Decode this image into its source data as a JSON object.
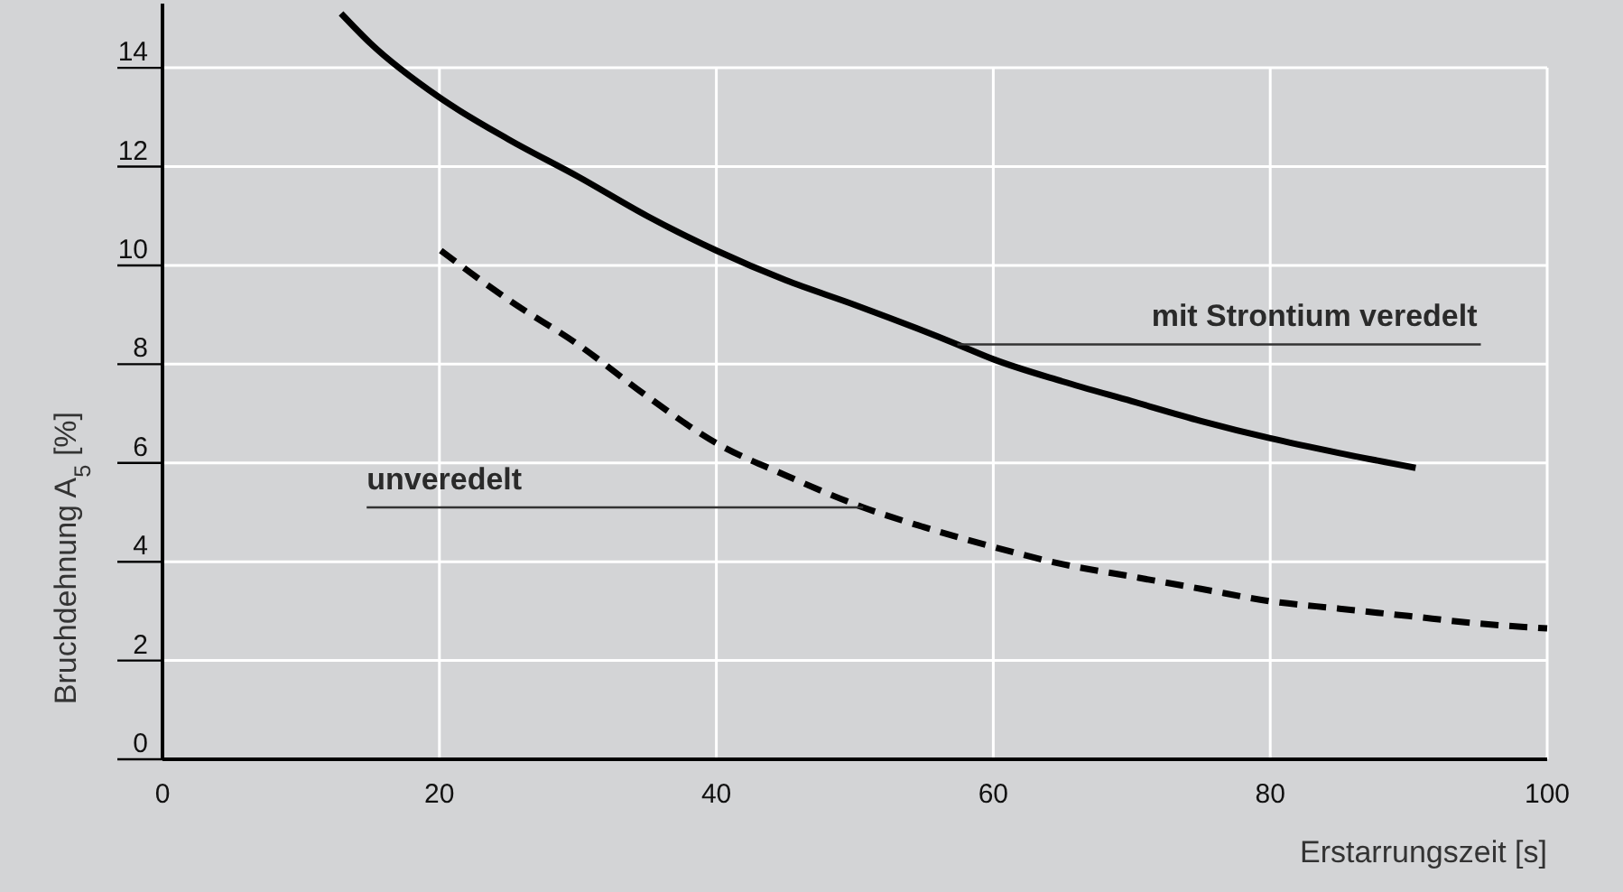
{
  "chart_data": {
    "type": "line",
    "xlabel": "Erstarrungszeit [s]",
    "ylabel": "Bruchdehnung A$_{5}$ [%]",
    "xlim": [
      0,
      100
    ],
    "xticks": [
      0,
      20,
      40,
      60,
      80,
      100
    ],
    "ylim": [
      0,
      15.3
    ],
    "yticks": [
      0,
      2,
      4,
      6,
      8,
      10,
      12,
      14
    ],
    "grid": true,
    "marker": "none",
    "series": [
      {
        "color": "#000000",
        "line_style": "solid",
        "x": [
          12.9,
          15,
          20,
          25,
          30,
          35,
          40,
          45,
          50,
          57.4,
          60,
          65,
          70,
          75,
          80,
          85,
          90.5
        ],
        "values": [
          15.1,
          14.5,
          13.4,
          12.55,
          11.8,
          11.0,
          10.3,
          9.7,
          9.2,
          8.4,
          8.1,
          7.65,
          7.25,
          6.85,
          6.5,
          6.2,
          5.9
        ]
      },
      {
        "color": "#000000",
        "line_style": "dashed",
        "x": [
          20.1,
          25,
          30,
          35,
          40,
          45,
          50.6,
          55,
          60,
          65,
          70,
          75,
          80,
          85,
          90,
          95,
          100
        ],
        "values": [
          10.3,
          9.3,
          8.4,
          7.35,
          6.4,
          5.75,
          5.1,
          4.7,
          4.3,
          3.95,
          3.7,
          3.45,
          3.2,
          3.05,
          2.9,
          2.75,
          2.65
        ]
      }
    ],
    "annotations": [
      {
        "text": "mit Strontium veredelt",
        "x": 57.4,
        "y": 8.4
      },
      {
        "text": "unveredelt",
        "x": 50.6,
        "y": 5.1
      }
    ]
  }
}
